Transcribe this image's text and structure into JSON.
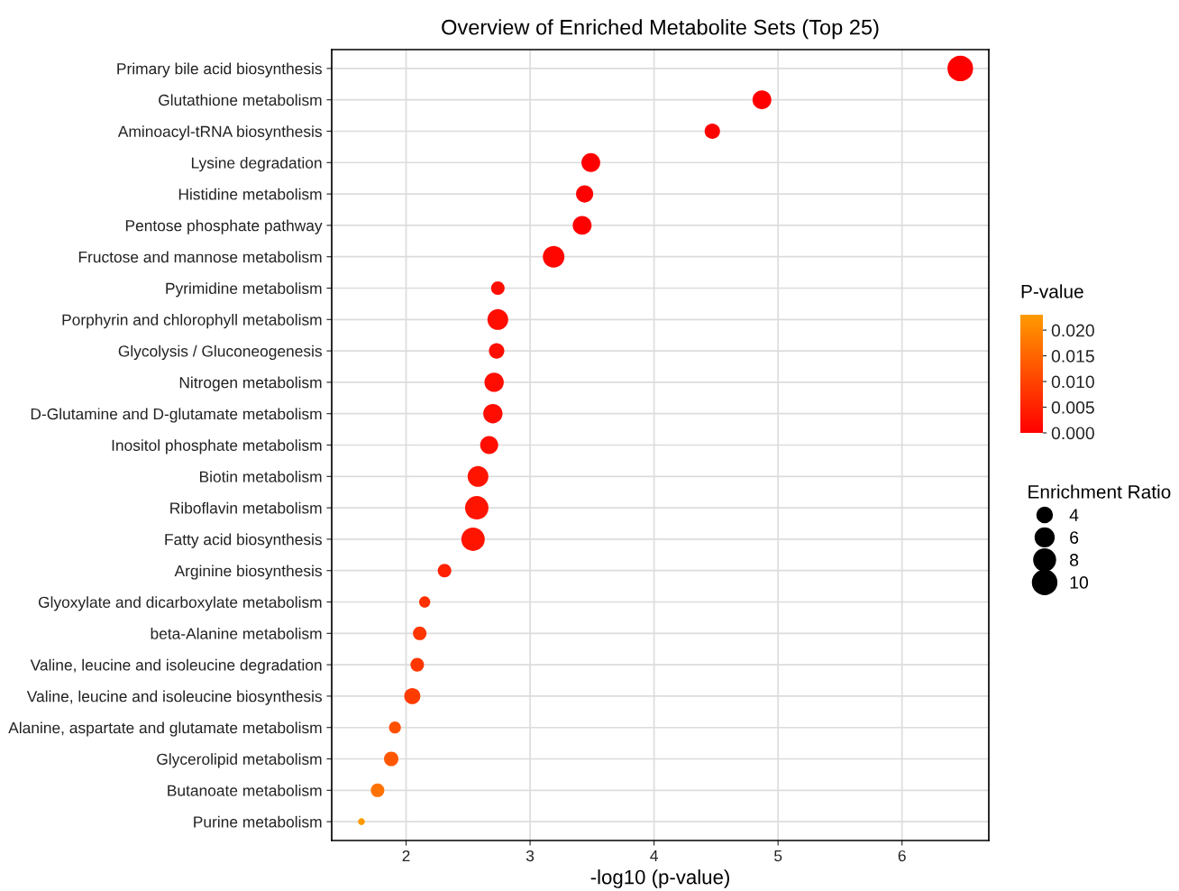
{
  "chart_data": {
    "type": "bubble",
    "title": "Overview of Enriched Metabolite Sets (Top 25)",
    "xlabel": "-log10 (p-value)",
    "clabel": "P-value",
    "legend_title": "Enrichment Ratio",
    "categories": [
      "Primary bile acid biosynthesis",
      "Glutathione metabolism",
      "Aminoacyl-tRNA biosynthesis",
      "Lysine degradation",
      "Histidine metabolism",
      "Pentose phosphate pathway",
      "Fructose and mannose metabolism",
      "Pyrimidine metabolism",
      "Porphyrin and chlorophyll metabolism",
      "Glycolysis / Gluconeogenesis",
      "Nitrogen metabolism",
      "D-Glutamine and D-glutamate metabolism",
      "Inositol phosphate metabolism",
      "Biotin metabolism",
      "Riboflavin metabolism",
      "Fatty acid biosynthesis",
      "Arginine biosynthesis",
      "Glyoxylate and dicarboxylate metabolism",
      "beta-Alanine metabolism",
      "Valine, leucine and isoleucine degradation",
      "Valine, leucine and isoleucine biosynthesis",
      "Alanine, aspartate and glutamate metabolism",
      "Glycerolipid metabolism",
      "Butanoate metabolism",
      "Purine metabolism"
    ],
    "values": [
      6.47,
      4.87,
      4.47,
      3.49,
      3.44,
      3.42,
      3.19,
      2.74,
      2.74,
      2.73,
      2.71,
      2.7,
      2.67,
      2.58,
      2.57,
      2.54,
      2.31,
      2.15,
      2.11,
      2.09,
      2.05,
      1.91,
      1.88,
      1.77,
      1.64
    ],
    "sizes": [
      11.1,
      6.0,
      4.0,
      6.0,
      5.0,
      6.0,
      7.9,
      3.1,
      7.3,
      4.0,
      6.3,
      6.3,
      5.5,
      7.3,
      9.3,
      9.3,
      3.1,
      2.1,
      3.1,
      3.1,
      4.4,
      2.4,
      3.5,
      3.1,
      0.8
    ],
    "cvalues": [
      0,
      0,
      0,
      0,
      0,
      0,
      0.001,
      0.002,
      0.002,
      0.002,
      0.002,
      0.002,
      0.002,
      0.003,
      0.003,
      0.003,
      0.005,
      0.007,
      0.008,
      0.008,
      0.009,
      0.012,
      0.013,
      0.017,
      0.023
    ],
    "size_legend": [
      4,
      6,
      8,
      10
    ],
    "xlim": [
      1.4,
      6.7
    ],
    "xticks": [
      2,
      3,
      4,
      5,
      6
    ],
    "clim": [
      0,
      0.023
    ],
    "cticks": [
      {
        "value": 0,
        "label": "0.000"
      },
      {
        "value": 0.005,
        "label": "0.005"
      },
      {
        "value": 0.01,
        "label": "0.010"
      },
      {
        "value": 0.015,
        "label": "0.015"
      },
      {
        "value": 0.02,
        "label": "0.020"
      }
    ],
    "grid": true,
    "orientation": "horizontal"
  }
}
